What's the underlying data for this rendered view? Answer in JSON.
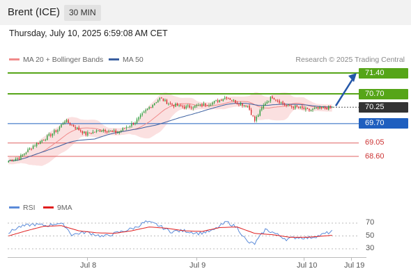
{
  "header": {
    "instrument": "Brent (ICE)",
    "timeframe": "30 MIN"
  },
  "timestamp": "Thursday, July 10, 2025 6:59:08 AM CET",
  "legend": {
    "ma20_label": "MA 20 + Bollinger Bands",
    "ma50_label": "MA 50",
    "research": "Research © 2025 Trading Central",
    "rsi_label": "RSI",
    "rsi_ma_label": "9MA"
  },
  "colors": {
    "up_candle": "#2a9d3a",
    "down_candle": "#d62828",
    "resistance": "#56a518",
    "support": "#1f5fbf",
    "support_minor": "#e06060",
    "ma20": "#f08a8a",
    "ma50": "#3a5fa0",
    "bollinger_fill": "#fbe0e0",
    "arrow": "#2457a8",
    "last_price_bg": "#333333",
    "rsi": "#5b8bd9",
    "rsi_ma": "#e01e1e"
  },
  "chart_data": {
    "type": "candlestick",
    "y_range": [
      67.9,
      71.6
    ],
    "x_ticks": [
      "Jul 8",
      "Jul 9",
      "Jul 10",
      "Jul 19"
    ],
    "last_price": "70.25",
    "levels": [
      {
        "value": "71.40",
        "kind": "resistance"
      },
      {
        "value": "70.70",
        "kind": "resistance"
      },
      {
        "value": "69.70",
        "kind": "support"
      },
      {
        "value": "69.05",
        "kind": "support_minor"
      },
      {
        "value": "68.60",
        "kind": "support_minor"
      }
    ],
    "close_path": [
      [
        0,
        68.45
      ],
      [
        6,
        68.55
      ],
      [
        14,
        68.95
      ],
      [
        22,
        69.25
      ],
      [
        28,
        69.5
      ],
      [
        32,
        69.8
      ],
      [
        36,
        69.65
      ],
      [
        44,
        69.35
      ],
      [
        54,
        69.5
      ],
      [
        62,
        69.4
      ],
      [
        66,
        69.55
      ],
      [
        72,
        69.75
      ],
      [
        80,
        70.25
      ],
      [
        86,
        70.55
      ],
      [
        92,
        70.35
      ],
      [
        100,
        70.25
      ],
      [
        108,
        70.3
      ],
      [
        116,
        70.4
      ],
      [
        124,
        70.6
      ],
      [
        130,
        70.4
      ],
      [
        136,
        70.3
      ],
      [
        140,
        69.8
      ],
      [
        146,
        70.4
      ],
      [
        150,
        70.6
      ],
      [
        158,
        70.3
      ],
      [
        164,
        70.25
      ],
      [
        170,
        70.15
      ],
      [
        176,
        70.2
      ],
      [
        184,
        70.25
      ]
    ],
    "candle_count": 185,
    "forecast_target": 71.4,
    "rsi": {
      "ticks": [
        70,
        50,
        30
      ],
      "y_range": [
        20,
        80
      ],
      "rsi_path": [
        [
          0,
          55
        ],
        [
          6,
          64
        ],
        [
          14,
          68
        ],
        [
          22,
          66
        ],
        [
          28,
          70
        ],
        [
          32,
          66
        ],
        [
          36,
          52
        ],
        [
          44,
          56
        ],
        [
          54,
          49
        ],
        [
          62,
          55
        ],
        [
          66,
          58
        ],
        [
          72,
          63
        ],
        [
          78,
          72
        ],
        [
          84,
          68
        ],
        [
          92,
          57
        ],
        [
          100,
          58
        ],
        [
          108,
          54
        ],
        [
          116,
          58
        ],
        [
          124,
          72
        ],
        [
          130,
          63
        ],
        [
          136,
          40
        ],
        [
          140,
          38
        ],
        [
          146,
          60
        ],
        [
          150,
          56
        ],
        [
          158,
          45
        ],
        [
          164,
          48
        ],
        [
          170,
          47
        ],
        [
          176,
          50
        ],
        [
          184,
          57
        ]
      ],
      "rsi_ma_path": [
        [
          0,
          50
        ],
        [
          10,
          58
        ],
        [
          20,
          65
        ],
        [
          30,
          66
        ],
        [
          40,
          58
        ],
        [
          50,
          55
        ],
        [
          60,
          54
        ],
        [
          70,
          58
        ],
        [
          80,
          64
        ],
        [
          90,
          62
        ],
        [
          100,
          58
        ],
        [
          110,
          57
        ],
        [
          120,
          63
        ],
        [
          130,
          64
        ],
        [
          140,
          54
        ],
        [
          150,
          52
        ],
        [
          160,
          48
        ],
        [
          170,
          48
        ],
        [
          184,
          51
        ]
      ]
    }
  }
}
